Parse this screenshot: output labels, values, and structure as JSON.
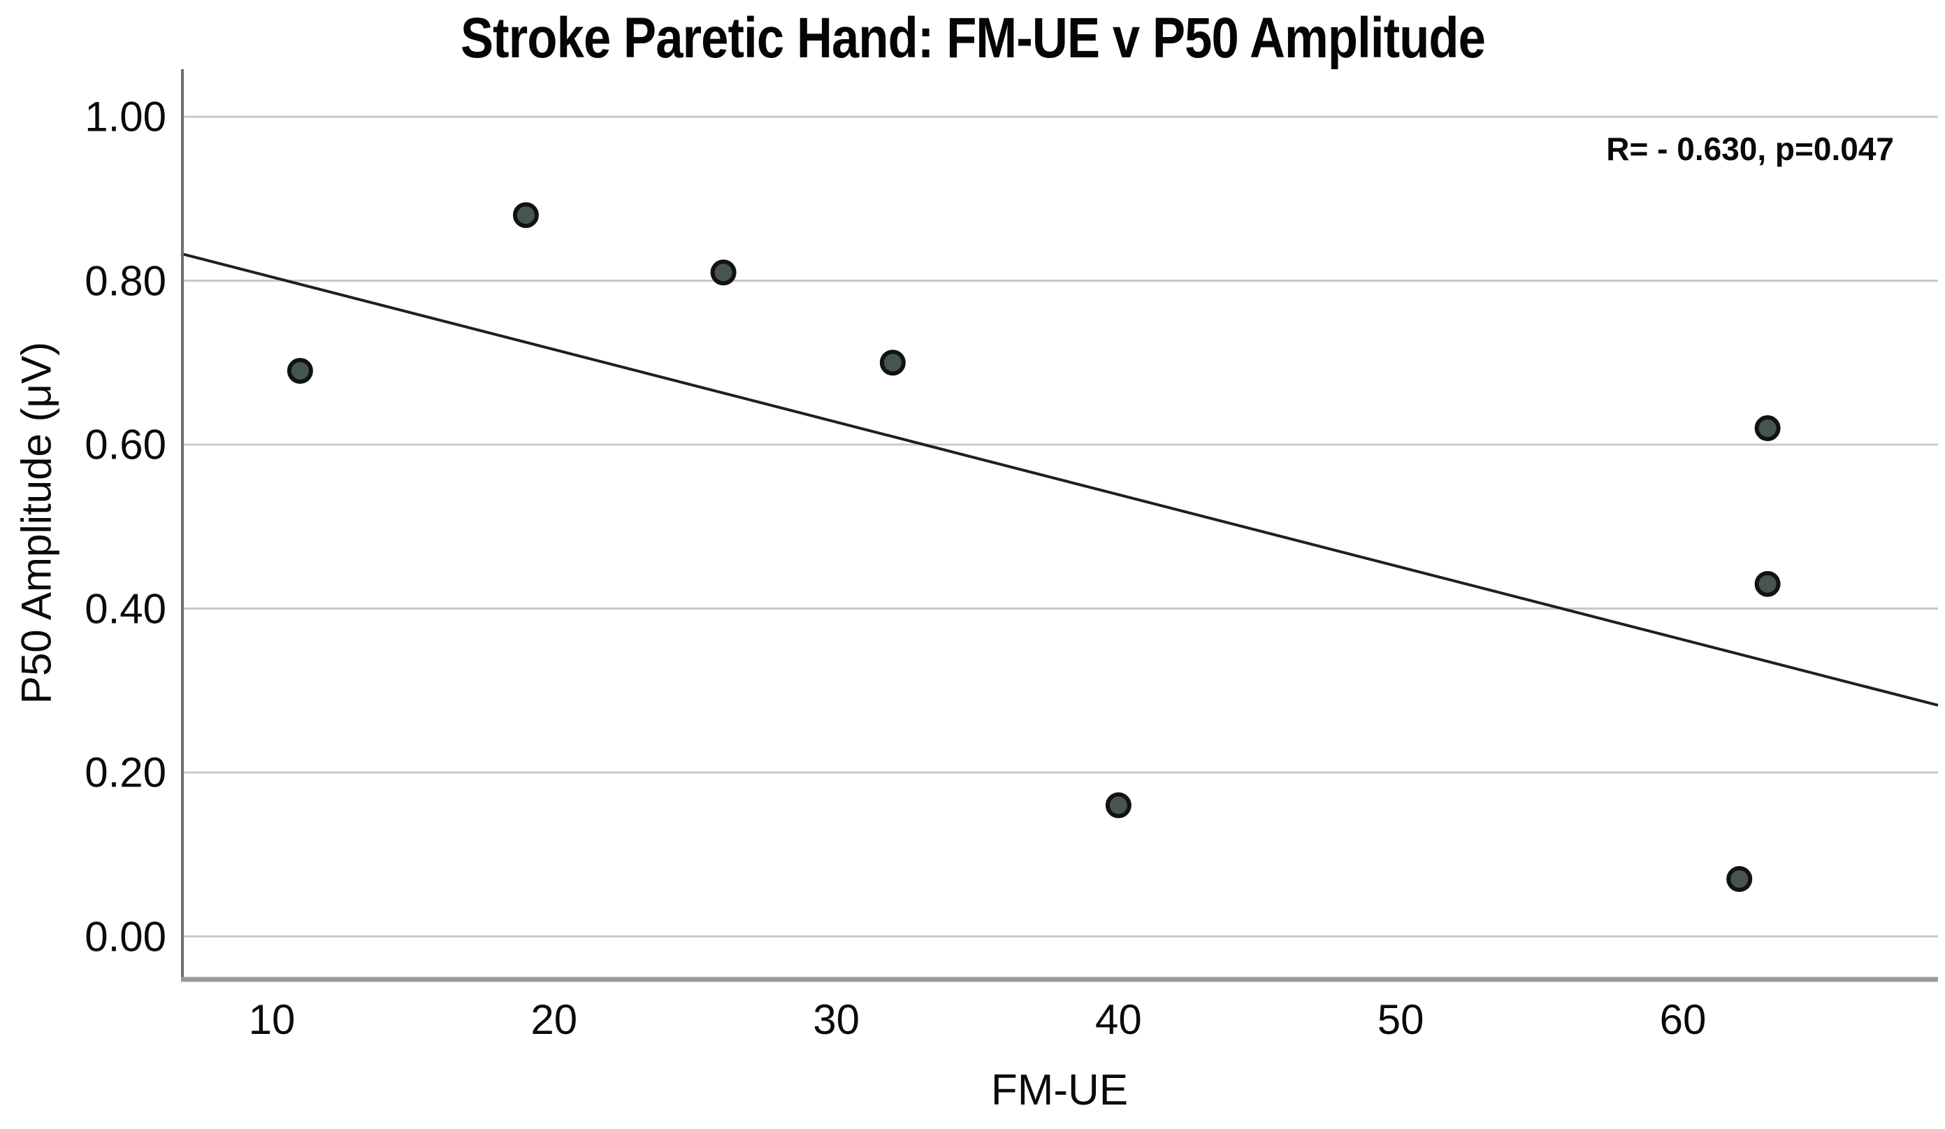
{
  "chart_data": {
    "type": "scatter",
    "title": "Stroke Paretic Hand: FM-UE v P50 Amplitude",
    "annotation": "R= - 0.630, p=0.047",
    "stats": {
      "R": -0.63,
      "p": 0.047
    },
    "xlabel": "FM-UE",
    "ylabel": "P50 Amplitude (μV)",
    "xlim": [
      6.78,
      69.04
    ],
    "ylim": [
      -0.055,
      1.058
    ],
    "x_ticks": [
      10,
      20,
      30,
      40,
      50,
      60
    ],
    "y_ticks": [
      1.0,
      0.8,
      0.6,
      0.4,
      0.2,
      0.0
    ],
    "y_tick_decimals": 2,
    "grid": "horizontal",
    "legend": "none",
    "points": [
      {
        "x": 11,
        "y": 0.69
      },
      {
        "x": 19,
        "y": 0.88
      },
      {
        "x": 26,
        "y": 0.81
      },
      {
        "x": 32,
        "y": 0.7
      },
      {
        "x": 40,
        "y": 0.16
      },
      {
        "x": 63,
        "y": 0.62
      },
      {
        "x": 63,
        "y": 0.43
      },
      {
        "x": 62,
        "y": 0.07
      }
    ],
    "fit_line": {
      "x1": 6.78,
      "y1": 0.833,
      "x2": 69.04,
      "y2": 0.282
    },
    "colors": {
      "marker_fill": "#46564f",
      "marker_stroke": "#101312",
      "fit_line": "#1f1f1f",
      "gridline": "#c9c9c9",
      "y_spine": "#6e6e6e",
      "x_axis_line": "#9a9a9a",
      "text": "#0a0a0a"
    }
  }
}
